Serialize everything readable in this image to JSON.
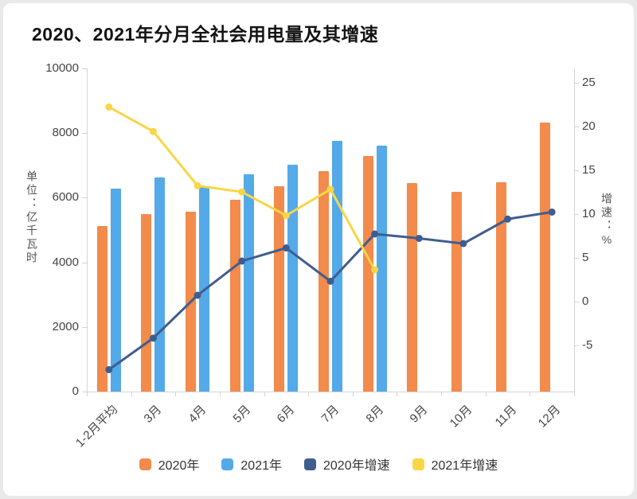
{
  "title": "2020、2021年分月全社会用电量及其增速",
  "colors": {
    "background": "#e9e9e9",
    "card": "#ffffff",
    "axis_line": "#d4d4d4",
    "text": "#444444",
    "title_text": "#141414"
  },
  "chart_data": {
    "type": "bar",
    "subtype": "grouped bars (left axis) with growth-rate lines (right axis)",
    "title": "2020、2021年分月全社会用电量及其增速",
    "categories": [
      "1-2月平均",
      "3月",
      "4月",
      "5月",
      "6月",
      "7月",
      "8月",
      "9月",
      "10月",
      "11月",
      "12月"
    ],
    "series": [
      {
        "name": "2020年",
        "type": "bar",
        "axis": "left",
        "color": "#F28B4B",
        "values": [
          5130,
          5490,
          5570,
          5930,
          6350,
          6820,
          7290,
          6450,
          6170,
          6470,
          8330
        ]
      },
      {
        "name": "2021年",
        "type": "bar",
        "axis": "left",
        "color": "#54A9E8",
        "values": [
          6290,
          6630,
          6360,
          6720,
          7030,
          7760,
          7610,
          null,
          null,
          null,
          null
        ]
      },
      {
        "name": "2020年增速",
        "type": "line",
        "axis": "right",
        "color": "#405D8F",
        "values": [
          -7.8,
          -4.2,
          0.7,
          4.6,
          6.1,
          2.3,
          7.7,
          7.2,
          6.6,
          9.4,
          10.2
        ]
      },
      {
        "name": "2021年增速",
        "type": "line",
        "axis": "right",
        "color": "#F8D648",
        "values": [
          22.2,
          19.4,
          13.2,
          12.5,
          9.8,
          12.8,
          3.6,
          null,
          null,
          null,
          null
        ]
      }
    ],
    "left_axis": {
      "title": "单位：亿千瓦时",
      "min": 0,
      "max": 10000,
      "ticks": [
        10000,
        8000,
        6000,
        4000,
        2000,
        0
      ]
    },
    "right_axis": {
      "title": "增速：%",
      "min": -10.3,
      "max": 26.6,
      "ticks": [
        25,
        20,
        15,
        10,
        5,
        0,
        -5
      ]
    },
    "legend": [
      "2020年",
      "2021年",
      "2020年增速",
      "2021年增速"
    ],
    "legend_position": "bottom",
    "grid": false
  }
}
